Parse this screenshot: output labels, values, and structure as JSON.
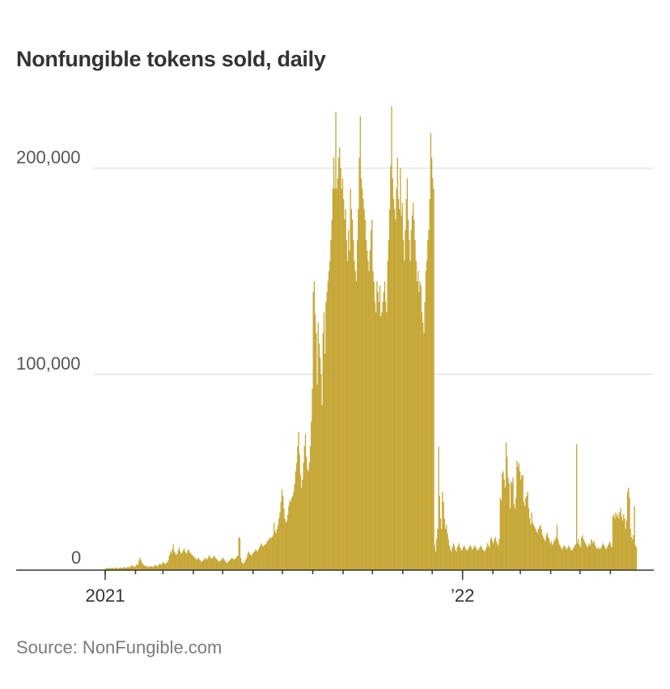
{
  "title": "Nonfungible tokens sold, daily",
  "source": "Source: NonFungible.com",
  "colors": {
    "bar": "#c5a634",
    "grid": "#d9d9d9",
    "axis": "#333333"
  },
  "chart_data": {
    "type": "bar",
    "title": "Nonfungible tokens sold, daily",
    "x_start": "2021-01-01",
    "ylim": [
      0,
      200000
    ],
    "y_ticks": [
      {
        "value": 0,
        "label": "0"
      },
      {
        "value": 100000,
        "label": "100,000"
      },
      {
        "value": 200000,
        "label": "200,000"
      }
    ],
    "x_ticks": [
      {
        "date": "2021-01-01",
        "label": "2021"
      },
      {
        "date": "2022-01-01",
        "label": "’22"
      }
    ],
    "grid": "horizontal",
    "series": [
      {
        "values": [
          1000,
          800,
          900,
          1200,
          800,
          900,
          1100,
          1000,
          900,
          800,
          1200,
          1300,
          1000,
          900,
          1100,
          1200,
          1000,
          900,
          1300,
          1500,
          1200,
          1100,
          1400,
          1600,
          1300,
          1500,
          2000,
          2500,
          1800,
          1500,
          1700,
          2200,
          3000,
          2500,
          4500,
          6000,
          5000,
          3500,
          3000,
          2500,
          2000,
          2200,
          1800,
          1600,
          1500,
          1800,
          2000,
          1700,
          1500,
          1800,
          2200,
          2500,
          2000,
          1800,
          2500,
          3000,
          2800,
          2500,
          3500,
          4000,
          3200,
          3000,
          3500,
          3800,
          5000,
          7000,
          9000,
          8000,
          10000,
          12500,
          9000,
          8000,
          7500,
          8000,
          9500,
          11000,
          9000,
          8000,
          8500,
          9500,
          10500,
          9000,
          8000,
          8500,
          10000,
          9500,
          8500,
          8000,
          7500,
          7000,
          6500,
          6000,
          5500,
          5000,
          5500,
          6000,
          5000,
          4500,
          4000,
          4500,
          5000,
          5500,
          6000,
          5000,
          5500,
          6500,
          7000,
          6000,
          5500,
          6000,
          6500,
          7000,
          6000,
          5500,
          5000,
          4500,
          4000,
          4500,
          5000,
          5500,
          6000,
          5000,
          4500,
          4000,
          3500,
          4000,
          4500,
          5000,
          5500,
          6000,
          5500,
          5000,
          5500,
          6000,
          6500,
          7000,
          16000,
          15500,
          6000,
          4000,
          3500,
          3000,
          4000,
          5000,
          6000,
          8000,
          9000,
          8000,
          7500,
          7000,
          8000,
          8500,
          9000,
          10000,
          9500,
          9000,
          10000,
          11000,
          12000,
          13000,
          12000,
          11500,
          12000,
          12500,
          13000,
          14000,
          14500,
          15000,
          16000,
          15500,
          16000,
          17000,
          23000,
          19000,
          18000,
          20000,
          22000,
          25000,
          28000,
          33000,
          39000,
          36000,
          30000,
          25000,
          23000,
          24000,
          27000,
          31000,
          34000,
          33000,
          35000,
          36000,
          38000,
          42000,
          48000,
          52000,
          60000,
          67000,
          56000,
          46000,
          40000,
          44000,
          52000,
          60000,
          66000,
          55000,
          49000,
          48000,
          52000,
          60000,
          72000,
          88000,
          135000,
          140000,
          124000,
          115000,
          90000,
          120000,
          110000,
          103000,
          95000,
          80000,
          115000,
          125000,
          105000,
          130000,
          135000,
          140000,
          145000,
          150000,
          160000,
          170000,
          185000,
          200000,
          185000,
          222000,
          185000,
          190000,
          200000,
          205000,
          195000,
          185000,
          190000,
          180000,
          170000,
          175000,
          160000,
          150000,
          165000,
          155000,
          185000,
          175000,
          170000,
          160000,
          150000,
          145000,
          140000,
          160000,
          175000,
          200000,
          220000,
          190000,
          185000,
          180000,
          175000,
          170000,
          160000,
          155000,
          150000,
          145000,
          155000,
          165000,
          170000,
          145000,
          140000,
          130000,
          125000,
          140000,
          135000,
          130000,
          138000,
          123000,
          125000,
          130000,
          135000,
          140000,
          130000,
          125000,
          150000,
          160000,
          175000,
          196000,
          225000,
          190000,
          180000,
          175000,
          170000,
          185000,
          200000,
          180000,
          175000,
          195000,
          172000,
          178000,
          160000,
          150000,
          165000,
          180000,
          190000,
          170000,
          160000,
          150000,
          165000,
          172000,
          178000,
          170000,
          160000,
          150000,
          140000,
          145000,
          135000,
          140000,
          138000,
          125000,
          120000,
          115000,
          130000,
          145000,
          150000,
          160000,
          165000,
          180000,
          212000,
          200000,
          190000,
          185000,
          12000,
          9000,
          15000,
          20000,
          60000,
          36000,
          25000,
          20000,
          38000,
          33000,
          25000,
          20000,
          22000,
          18000,
          15000,
          12000,
          10000,
          9000,
          11000,
          13000,
          12000,
          10000,
          9000,
          11000,
          12000,
          13000,
          11000,
          9500,
          10000,
          11000,
          12000,
          11000,
          10000,
          9500,
          10000,
          11000,
          12000,
          11500,
          10500,
          10000,
          11000,
          12000,
          11000,
          10000,
          9500,
          10000,
          11000,
          12000,
          11000,
          10000,
          9500,
          9000,
          10000,
          11000,
          13000,
          12000,
          11000,
          15000,
          16000,
          14000,
          13000,
          15000,
          16000,
          14000,
          13000,
          12000,
          15000,
          35000,
          34000,
          47000,
          48000,
          44000,
          40000,
          62000,
          55000,
          45000,
          42000,
          30000,
          43000,
          42000,
          45000,
          32000,
          30000,
          35000,
          53000,
          50000,
          52000,
          48000,
          44000,
          46000,
          46000,
          33000,
          31000,
          35000,
          36000,
          38000,
          30000,
          25000,
          22000,
          28000,
          23000,
          22000,
          21000,
          20000,
          19000,
          18000,
          20000,
          21000,
          22000,
          20000,
          17000,
          16000,
          15000,
          14000,
          17000,
          18000,
          16000,
          15000,
          13000,
          14000,
          12000,
          13000,
          14000,
          15000,
          16000,
          22000,
          15000,
          13000,
          12000,
          11000,
          10000,
          11000,
          12000,
          11500,
          10500,
          10000,
          11000,
          12000,
          11000,
          10000,
          9500,
          10000,
          11000,
          12000,
          12500,
          61000,
          13000,
          15000,
          12000,
          11000,
          16000,
          17000,
          15000,
          14000,
          13000,
          12000,
          11000,
          12000,
          13000,
          12000,
          15000,
          14000,
          13000,
          14000,
          12000,
          11000,
          10000,
          11000,
          10500,
          10000,
          11000,
          12000,
          13000,
          12000,
          11000,
          10000,
          11000,
          12000,
          13000,
          14000,
          12000,
          11000,
          26000,
          27000,
          25000,
          28000,
          26000,
          27000,
          25000,
          28000,
          30000,
          26000,
          24000,
          27000,
          25000,
          20000,
          24000,
          38000,
          40000,
          35000,
          20000,
          16000,
          15000,
          17000,
          31000,
          12000,
          11000
        ]
      }
    ]
  }
}
